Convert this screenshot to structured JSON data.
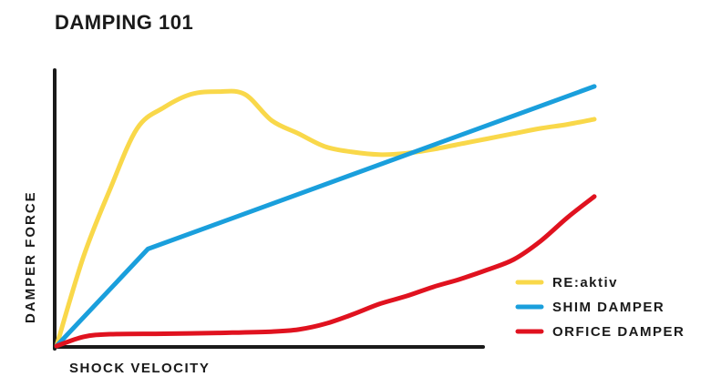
{
  "title": "DAMPING 101",
  "chart_data": {
    "type": "line",
    "title": "DAMPING 101",
    "xlabel": "SHOCK VELOCITY",
    "ylabel": "DAMPER FORCE",
    "xlim": [
      0,
      1
    ],
    "ylim": [
      0,
      1
    ],
    "grid": false,
    "legend_position": "bottom-right",
    "series": [
      {
        "name": "RE:aktiv",
        "color": "#f9d84a",
        "x": [
          0,
          0.05,
          0.1,
          0.15,
          0.2,
          0.25,
          0.3,
          0.35,
          0.4,
          0.45,
          0.5,
          0.55,
          0.6,
          0.65,
          0.7,
          0.75,
          0.8,
          0.85,
          0.9,
          0.95,
          1.0
        ],
        "y": [
          0,
          0.34,
          0.6,
          0.83,
          0.91,
          0.96,
          0.97,
          0.96,
          0.86,
          0.81,
          0.76,
          0.74,
          0.73,
          0.735,
          0.75,
          0.77,
          0.79,
          0.81,
          0.83,
          0.845,
          0.865
        ]
      },
      {
        "name": "SHIM DAMPER",
        "color": "#1a9fdc",
        "x": [
          0,
          0.17,
          1.0
        ],
        "y": [
          0,
          0.37,
          0.99
        ]
      },
      {
        "name": "ORFICE DAMPER",
        "color": "#e0121f",
        "x": [
          0,
          0.05,
          0.1,
          0.2,
          0.3,
          0.4,
          0.45,
          0.5,
          0.55,
          0.6,
          0.65,
          0.7,
          0.75,
          0.8,
          0.85,
          0.9,
          0.95,
          1.0
        ],
        "y": [
          0,
          0.035,
          0.045,
          0.047,
          0.05,
          0.055,
          0.063,
          0.085,
          0.12,
          0.16,
          0.19,
          0.225,
          0.255,
          0.29,
          0.33,
          0.4,
          0.49,
          0.57
        ]
      }
    ]
  }
}
